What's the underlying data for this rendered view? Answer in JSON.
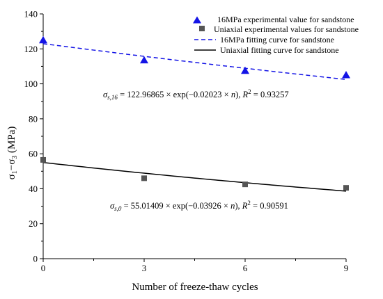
{
  "chart_data": {
    "type": "scatter",
    "xlabel": "Number of freeze-thaw cycles",
    "ylabel": "σ1−σ3 (MPa)",
    "xlim": [
      0,
      9
    ],
    "ylim": [
      0,
      140
    ],
    "x_ticks": [
      0,
      3,
      6,
      9
    ],
    "y_ticks": [
      0,
      20,
      40,
      60,
      80,
      100,
      120,
      140
    ],
    "grid": false,
    "legend_position": "top-right",
    "series": [
      {
        "name": "16MPa experimental value for sandstone",
        "kind": "scatter",
        "marker": "triangle",
        "color": "#1414e6",
        "x": [
          0,
          3,
          6,
          9
        ],
        "y": [
          125,
          113.5,
          107.5,
          105
        ]
      },
      {
        "name": "Uniaxial experimental values for sandstone",
        "kind": "scatter",
        "marker": "square",
        "color": "#555555",
        "x": [
          0,
          3,
          6,
          9
        ],
        "y": [
          56.5,
          46,
          42.5,
          40.5
        ]
      },
      {
        "name": "16MPa fitting curve for sandstone",
        "kind": "line",
        "style": "dashed",
        "color": "#1414e6",
        "fit": {
          "a": 122.96865,
          "b": -0.02023
        }
      },
      {
        "name": "Uniaxial fitting curve for sandstone",
        "kind": "line",
        "style": "solid",
        "color": "#000000",
        "fit": {
          "a": 55.01409,
          "b": -0.03926
        }
      }
    ],
    "annotations": [
      {
        "id": "eq16",
        "text": "σs,16 = 122.96865 × exp(−0.02023 × n), R² = 0.93257"
      },
      {
        "id": "eq0",
        "text": "σs,0 = 55.01409 × exp(−0.03926 × n), R² = 0.90591"
      }
    ]
  }
}
